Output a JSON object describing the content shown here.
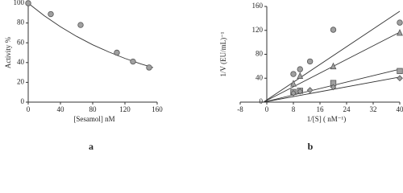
{
  "chart_data": [
    {
      "type": "scatter",
      "panel": "a",
      "xlabel": "[Sesamol] nM",
      "ylabel": "Activity %",
      "xlim": [
        0,
        160
      ],
      "xticks": [
        0,
        40,
        80,
        120,
        160
      ],
      "ylim": [
        0,
        100
      ],
      "yticks": [
        0,
        20,
        40,
        60,
        80,
        100
      ],
      "series": [
        {
          "marker": "circle",
          "color": "#a0a0a0",
          "x": [
            0,
            28,
            65,
            110,
            130,
            150
          ],
          "values": [
            100,
            89,
            78,
            50,
            41,
            35
          ],
          "fit": {
            "x": [
              0,
              20,
              40,
              60,
              80,
              100,
              120,
              140,
              155
            ],
            "y": [
              100,
              87.3,
              76.2,
              66.5,
              58,
              50.7,
              44.2,
              38.6,
              34.9
            ]
          }
        }
      ]
    },
    {
      "type": "scatter",
      "panel": "b",
      "xlabel": "1/[S] ( nM⁻¹)",
      "ylabel": "1/V (EU/mL)⁻¹",
      "xlim": [
        -8,
        40
      ],
      "xticks": [
        -8,
        0,
        8,
        16,
        24,
        32,
        40
      ],
      "ylim": [
        0,
        160
      ],
      "yticks": [
        0,
        40,
        80,
        120,
        160
      ],
      "series": [
        {
          "marker": "circle",
          "color": "#a0a0a0",
          "x": [
            8,
            10,
            13,
            20,
            40
          ],
          "values": [
            47,
            55,
            68,
            121,
            133
          ],
          "fit": {
            "x": [
              -1,
              40
            ],
            "y": [
              0,
              152
            ]
          }
        },
        {
          "marker": "triangle",
          "color": "#a0a0a0",
          "x": [
            8,
            10,
            20,
            40
          ],
          "values": [
            31,
            44,
            60,
            116
          ],
          "fit": {
            "x": [
              -1,
              40
            ],
            "y": [
              0,
              117
            ]
          }
        },
        {
          "marker": "square",
          "color": "#a0a0a0",
          "x": [
            8,
            10,
            20,
            40
          ],
          "values": [
            17,
            19,
            32,
            52
          ],
          "fit": {
            "x": [
              -1,
              40
            ],
            "y": [
              0,
              55
            ]
          }
        },
        {
          "marker": "diamond",
          "color": "#a0a0a0",
          "x": [
            8,
            10,
            13,
            20,
            40
          ],
          "values": [
            15,
            18,
            20,
            25,
            40
          ],
          "fit": {
            "x": [
              -1,
              40
            ],
            "y": [
              0,
              42
            ]
          }
        }
      ]
    }
  ]
}
